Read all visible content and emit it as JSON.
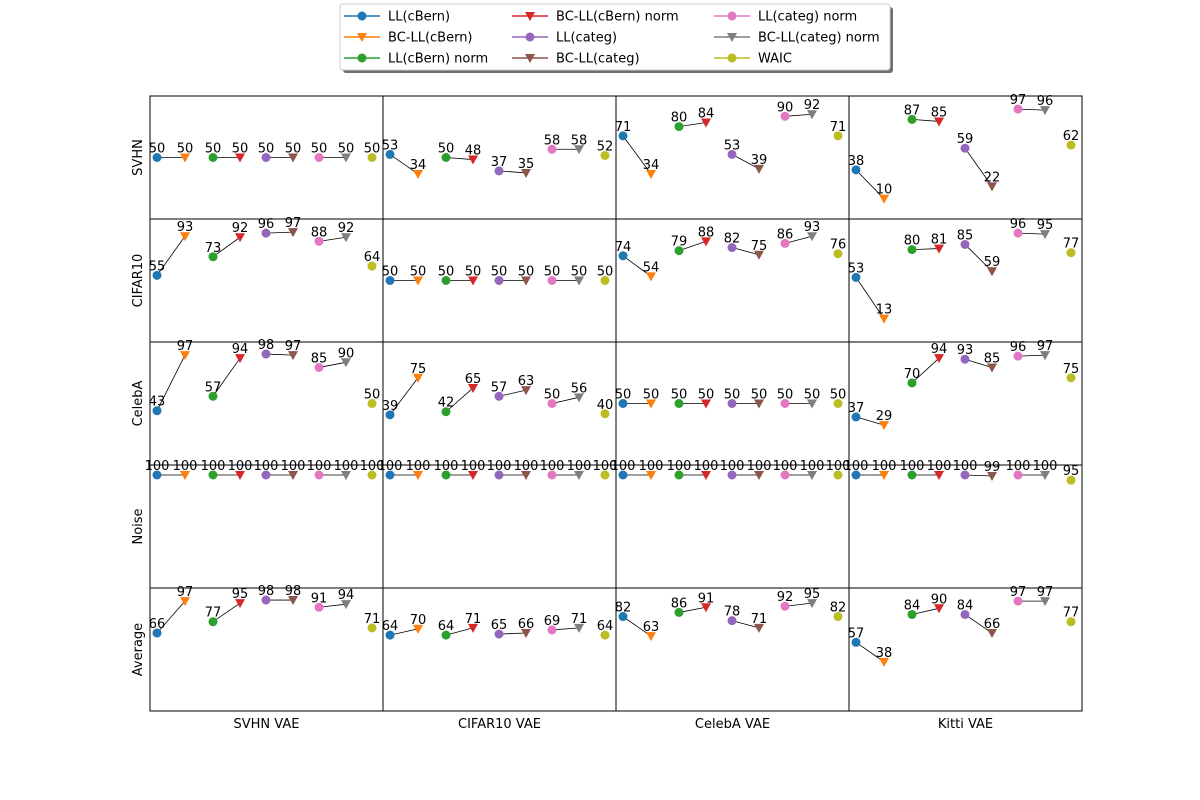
{
  "chart_data": {
    "type": "scatter",
    "series": [
      {
        "name": "LL(cBern)",
        "color": "#1f77b4",
        "marker": "circle"
      },
      {
        "name": "BC-LL(cBern)",
        "color": "#ff7f0e",
        "marker": "triangle-down"
      },
      {
        "name": "LL(cBern) norm",
        "color": "#2ca02c",
        "marker": "circle"
      },
      {
        "name": "BC-LL(cBern) norm",
        "color": "#d62728",
        "marker": "triangle-down"
      },
      {
        "name": "LL(categ)",
        "color": "#9467bd",
        "marker": "circle"
      },
      {
        "name": "BC-LL(categ)",
        "color": "#8c564b",
        "marker": "triangle-down"
      },
      {
        "name": "LL(categ) norm",
        "color": "#e377c2",
        "marker": "circle"
      },
      {
        "name": "BC-LL(categ) norm",
        "color": "#7f7f7f",
        "marker": "triangle-down"
      },
      {
        "name": "WAIC",
        "color": "#bcbd22",
        "marker": "circle"
      }
    ],
    "pairs": [
      [
        0,
        1
      ],
      [
        2,
        3
      ],
      [
        4,
        5
      ],
      [
        6,
        7
      ]
    ],
    "rows": [
      "SVHN",
      "CIFAR10",
      "CelebA",
      "Noise",
      "Average"
    ],
    "columns": [
      "SVHN VAE",
      "CIFAR10 VAE",
      "CelebA VAE",
      "Kitti VAE"
    ],
    "ylim": [
      0,
      100
    ],
    "values": [
      [
        [
          50,
          50,
          50,
          50,
          50,
          50,
          50,
          50,
          50
        ],
        [
          53,
          34,
          50,
          48,
          37,
          35,
          58,
          58,
          52
        ],
        [
          71,
          34,
          80,
          84,
          53,
          39,
          90,
          92,
          71
        ],
        [
          38,
          10,
          87,
          85,
          59,
          22,
          97,
          96,
          62
        ]
      ],
      [
        [
          55,
          93,
          73,
          92,
          96,
          97,
          88,
          92,
          64
        ],
        [
          50,
          50,
          50,
          50,
          50,
          50,
          50,
          50,
          50
        ],
        [
          74,
          54,
          79,
          88,
          82,
          75,
          86,
          93,
          76
        ],
        [
          53,
          13,
          80,
          81,
          85,
          59,
          96,
          95,
          77
        ]
      ],
      [
        [
          43,
          97,
          57,
          94,
          98,
          97,
          85,
          90,
          50
        ],
        [
          39,
          75,
          42,
          65,
          57,
          63,
          50,
          56,
          40
        ],
        [
          50,
          50,
          50,
          50,
          50,
          50,
          50,
          50,
          50
        ],
        [
          37,
          29,
          70,
          94,
          93,
          85,
          96,
          97,
          75
        ]
      ],
      [
        [
          100,
          100,
          100,
          100,
          100,
          100,
          100,
          100,
          100
        ],
        [
          100,
          100,
          100,
          100,
          100,
          100,
          100,
          100,
          100
        ],
        [
          100,
          100,
          100,
          100,
          100,
          100,
          100,
          100,
          100
        ],
        [
          100,
          100,
          100,
          100,
          100,
          99,
          100,
          100,
          95
        ]
      ],
      [
        [
          66,
          97,
          77,
          95,
          98,
          98,
          91,
          94,
          71
        ],
        [
          64,
          70,
          64,
          71,
          65,
          66,
          69,
          71,
          64
        ],
        [
          82,
          63,
          86,
          91,
          78,
          71,
          92,
          95,
          82
        ],
        [
          57,
          38,
          84,
          90,
          84,
          66,
          97,
          97,
          77
        ]
      ]
    ],
    "legend_position": "top-center",
    "grid": false
  }
}
